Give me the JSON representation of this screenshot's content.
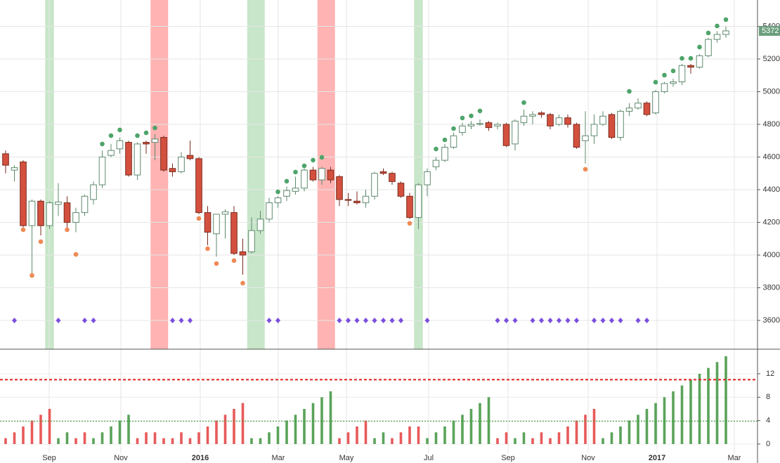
{
  "chart_data": [
    {
      "type": "candlestick",
      "xlim": [
        -0.64,
        85.6
      ],
      "ylim": [
        3424,
        5561
      ],
      "yticks": [
        3600,
        3800,
        4000,
        4200,
        4400,
        4600,
        4800,
        5000,
        5200,
        5400
      ],
      "xticks": [
        {
          "value": 4.96,
          "label": "Sep"
        },
        {
          "value": 13.12,
          "label": "Nov"
        },
        {
          "value": 22.16,
          "label": "2016"
        },
        {
          "value": 31.04,
          "label": "Mar"
        },
        {
          "value": 38.8,
          "label": "May"
        },
        {
          "value": 48.16,
          "label": "Jul"
        },
        {
          "value": 57.2,
          "label": "Sep"
        },
        {
          "value": 66.32,
          "label": "Nov"
        },
        {
          "value": 74.16,
          "label": "2017"
        },
        {
          "value": 82.96,
          "label": "Mar"
        }
      ],
      "grid": true,
      "up_color": "#ffffff",
      "up_border": "#5f8a6e",
      "down_color": "#d4503e",
      "down_border": "#7a2a1c",
      "open": [
        4620,
        4520,
        4570,
        4180,
        4330,
        4180,
        4310,
        4320,
        4200,
        4260,
        4340,
        4430,
        4610,
        4650,
        4690,
        4490,
        4690,
        4690,
        4720,
        4530,
        4510,
        4610,
        4590,
        4260,
        4130,
        4250,
        4260,
        4020,
        4020,
        4150,
        4220,
        4320,
        4360,
        4390,
        4410,
        4520,
        4460,
        4520,
        4480,
        4340,
        4330,
        4320,
        4360,
        4510,
        4500,
        4440,
        4360,
        4230,
        4430,
        4540,
        4580,
        4660,
        4750,
        4790,
        4800,
        4810,
        4790,
        4800,
        4680,
        4810,
        4850,
        4870,
        4860,
        4800,
        4840,
        4800,
        4700,
        4730,
        4800,
        4860,
        4720,
        4880,
        4900,
        4930,
        4870,
        5000,
        5050,
        5060,
        5160,
        5150,
        5220,
        5320,
        5350
      ],
      "high": [
        4640,
        4550,
        4580,
        4340,
        4340,
        4330,
        4440,
        4360,
        4290,
        4370,
        4450,
        4640,
        4680,
        4720,
        4700,
        4690,
        4700,
        4740,
        4730,
        4560,
        4630,
        4700,
        4600,
        4300,
        4250,
        4280,
        4300,
        4100,
        4230,
        4270,
        4350,
        4360,
        4420,
        4480,
        4530,
        4540,
        4540,
        4540,
        4490,
        4380,
        4390,
        4400,
        4510,
        4530,
        4510,
        4450,
        4380,
        4440,
        4530,
        4600,
        4680,
        4750,
        4810,
        4820,
        4830,
        4820,
        4810,
        4810,
        4830,
        4890,
        4880,
        4880,
        4870,
        4860,
        4860,
        4810,
        4880,
        4860,
        4880,
        4870,
        4890,
        4930,
        4960,
        4940,
        5010,
        5060,
        5080,
        5170,
        5170,
        5230,
        5330,
        5370,
        5400
      ],
      "low": [
        4500,
        4450,
        4170,
        3880,
        4120,
        4160,
        4240,
        4160,
        4140,
        4240,
        4310,
        4410,
        4600,
        4620,
        4480,
        4460,
        4620,
        4580,
        4510,
        4480,
        4500,
        4580,
        4250,
        4060,
        3990,
        4100,
        4000,
        3880,
        4010,
        4130,
        4200,
        4290,
        4330,
        4370,
        4390,
        4450,
        4430,
        4440,
        4300,
        4300,
        4310,
        4290,
        4340,
        4490,
        4430,
        4350,
        4220,
        4160,
        4360,
        4520,
        4570,
        4650,
        4730,
        4770,
        4790,
        4760,
        4770,
        4660,
        4640,
        4790,
        4800,
        4840,
        4770,
        4790,
        4780,
        4650,
        4560,
        4680,
        4790,
        4710,
        4700,
        4850,
        4890,
        4850,
        4860,
        4990,
        5030,
        5040,
        5110,
        5140,
        5210,
        5300,
        5330
      ],
      "close": [
        4550,
        4535,
        4180,
        4330,
        4180,
        4320,
        4325,
        4200,
        4260,
        4360,
        4430,
        4600,
        4640,
        4700,
        4490,
        4680,
        4680,
        4710,
        4520,
        4510,
        4600,
        4590,
        4260,
        4140,
        4250,
        4265,
        4010,
        4000,
        4150,
        4220,
        4320,
        4350,
        4395,
        4410,
        4520,
        4460,
        4530,
        4460,
        4340,
        4335,
        4320,
        4360,
        4500,
        4500,
        4450,
        4360,
        4230,
        4430,
        4510,
        4580,
        4660,
        4730,
        4790,
        4800,
        4805,
        4780,
        4800,
        4670,
        4820,
        4850,
        4860,
        4860,
        4790,
        4840,
        4800,
        4660,
        4730,
        4800,
        4850,
        4720,
        4880,
        4900,
        4930,
        4860,
        5000,
        5050,
        5060,
        5160,
        5150,
        5220,
        5320,
        5350,
        5372
      ],
      "last_price": 5372,
      "last_color": "#6b9e7c",
      "bands": [
        {
          "color": "#c8e6c9",
          "range": [
            5,
            5
          ]
        },
        {
          "color": "#c8e6c9",
          "range": [
            28,
            29
          ]
        },
        {
          "color": "#c8e6c9",
          "range": [
            47,
            47
          ]
        },
        {
          "color": "#ffb3b3",
          "range": [
            17,
            18
          ]
        },
        {
          "color": "#ffb3b3",
          "range": [
            36,
            37
          ]
        }
      ],
      "markers": [
        {
          "shape": "circle",
          "color": "#4ea46a",
          "x": [
            11,
            12,
            13,
            15,
            16,
            17,
            31,
            32,
            33,
            34,
            35,
            36,
            49,
            50,
            51,
            52,
            53,
            54,
            59,
            71,
            74,
            75,
            76,
            77,
            78,
            79,
            80,
            81,
            82
          ],
          "values": [
            4680,
            4731,
            4766,
            4731,
            4748,
            4778,
            4387,
            4452,
            4508,
            4546,
            4581,
            4598,
            4649,
            4705,
            4774,
            4839,
            4852,
            4882,
            4933,
            5002,
            5058,
            5101,
            5127,
            5204,
            5204,
            5273,
            5359,
            5402,
            5441
          ]
        },
        {
          "shape": "circle",
          "color": "#ef8a55",
          "x": [
            2,
            3,
            4,
            7,
            8,
            22,
            23,
            24,
            26,
            27,
            46,
            66
          ],
          "values": [
            4155,
            3875,
            4082,
            4155,
            4004,
            4224,
            4039,
            3948,
            3966,
            3828,
            4194,
            4525
          ]
        },
        {
          "shape": "diamond",
          "color": "#7b4fe0",
          "x": [
            1,
            6,
            9,
            10,
            19,
            20,
            21,
            30,
            31,
            38,
            39,
            40,
            41,
            42,
            43,
            44,
            45,
            48,
            56,
            57,
            58,
            60,
            61,
            62,
            63,
            64,
            65,
            67,
            68,
            69,
            70,
            72,
            73
          ],
          "values": [
            3600,
            3600,
            3600,
            3600,
            3600,
            3600,
            3600,
            3600,
            3600,
            3600,
            3600,
            3600,
            3600,
            3600,
            3600,
            3600,
            3600,
            3600,
            3600,
            3600,
            3600,
            3600,
            3600,
            3600,
            3600,
            3600,
            3600,
            3600,
            3600,
            3600,
            3600,
            3600,
            3600
          ]
        }
      ]
    },
    {
      "type": "bar",
      "ylim": [
        -1.56,
        16.2
      ],
      "yticks": [
        0,
        4,
        8,
        12
      ],
      "values": [
        1,
        2,
        3,
        4,
        5,
        6,
        1,
        2,
        1,
        2,
        1,
        2,
        3,
        4,
        5,
        1,
        2,
        2,
        1,
        1,
        2,
        1,
        2,
        3,
        4,
        5,
        6,
        7,
        1,
        1,
        2,
        3,
        4,
        5,
        6,
        7,
        8,
        9,
        1,
        2,
        3,
        4,
        1,
        2,
        1,
        2,
        3,
        3,
        1,
        2,
        3,
        4,
        5,
        6,
        7,
        8,
        1,
        2,
        1,
        2,
        1,
        2,
        1,
        2,
        3,
        4,
        5,
        6,
        1,
        2,
        3,
        4,
        5,
        6,
        7,
        8,
        9,
        10,
        11,
        12,
        13,
        14,
        15
      ],
      "colors": [
        "#e85a5a",
        "#e85a5a",
        "#e85a5a",
        "#e85a5a",
        "#e85a5a",
        "#e85a5a",
        "#5aa35a",
        "#5aa35a",
        "#e85a5a",
        "#e85a5a",
        "#5aa35a",
        "#5aa35a",
        "#5aa35a",
        "#5aa35a",
        "#5aa35a",
        "#e85a5a",
        "#e85a5a",
        "#e85a5a",
        "#e85a5a",
        "#e85a5a",
        "#e85a5a",
        "#e85a5a",
        "#e85a5a",
        "#e85a5a",
        "#e85a5a",
        "#e85a5a",
        "#e85a5a",
        "#e85a5a",
        "#5aa35a",
        "#5aa35a",
        "#5aa35a",
        "#5aa35a",
        "#5aa35a",
        "#5aa35a",
        "#5aa35a",
        "#5aa35a",
        "#5aa35a",
        "#5aa35a",
        "#e85a5a",
        "#e85a5a",
        "#e85a5a",
        "#e85a5a",
        "#5aa35a",
        "#5aa35a",
        "#e85a5a",
        "#e85a5a",
        "#e85a5a",
        "#e85a5a",
        "#5aa35a",
        "#5aa35a",
        "#5aa35a",
        "#5aa35a",
        "#5aa35a",
        "#5aa35a",
        "#5aa35a",
        "#5aa35a",
        "#e85a5a",
        "#e85a5a",
        "#5aa35a",
        "#5aa35a",
        "#e85a5a",
        "#e85a5a",
        "#e85a5a",
        "#e85a5a",
        "#e85a5a",
        "#e85a5a",
        "#e85a5a",
        "#e85a5a",
        "#5aa35a",
        "#5aa35a",
        "#5aa35a",
        "#5aa35a",
        "#5aa35a",
        "#5aa35a",
        "#5aa35a",
        "#5aa35a",
        "#5aa35a",
        "#5aa35a",
        "#5aa35a",
        "#5aa35a",
        "#5aa35a",
        "#5aa35a",
        "#5aa35a"
      ],
      "levels": [
        {
          "value": 11,
          "color": "#e02020",
          "dash": "4,3"
        },
        {
          "value": 3.9,
          "color": "#3a9a3a",
          "dash": "2,2"
        }
      ]
    }
  ]
}
